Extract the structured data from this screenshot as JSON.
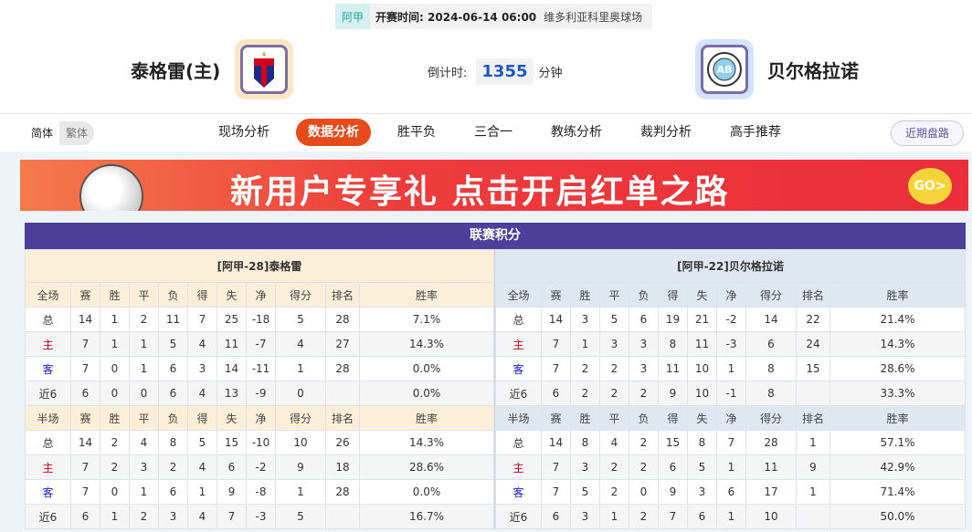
{
  "match": {
    "league": "阿甲",
    "time_label": "开赛时间:",
    "time": "2024-06-14 06:00",
    "venue": "维多利亚科里奥球场",
    "home": "泰格雷(主)",
    "away": "贝尔格拉诺",
    "countdown_label": "倒计时:",
    "countdown": "1355",
    "countdown_unit": "分钟"
  },
  "lang": {
    "simplified": "简体",
    "traditional": "繁体"
  },
  "tabs": [
    "现场分析",
    "数据分析",
    "胜平负",
    "三合一",
    "教练分析",
    "裁判分析",
    "高手推荐"
  ],
  "active_tab": "数据分析",
  "recent_button": "近期盘路",
  "banner": {
    "text": "新用户专享礼  点击开启红单之路",
    "go": "GO>"
  },
  "colors": {
    "accent": "#e84b1b",
    "header": "#4e3f9c",
    "home_label": "#d0021b",
    "away_label": "#1a1ad0"
  },
  "standings": {
    "title": "联赛积分",
    "columns": [
      "赛",
      "胜",
      "平",
      "负",
      "得",
      "失",
      "净",
      "得分",
      "排名",
      "胜率"
    ],
    "full_label": "全场",
    "half_label": "半场",
    "teams": [
      {
        "name": "[阿甲-28]泰格雷",
        "full": [
          [
            "总",
            "14",
            "1",
            "2",
            "11",
            "7",
            "25",
            "-18",
            "5",
            "28",
            "7.1%"
          ],
          [
            "主",
            "7",
            "1",
            "1",
            "5",
            "4",
            "11",
            "-7",
            "4",
            "27",
            "14.3%"
          ],
          [
            "客",
            "7",
            "0",
            "1",
            "6",
            "3",
            "14",
            "-11",
            "1",
            "28",
            "0.0%"
          ],
          [
            "近6",
            "6",
            "0",
            "0",
            "6",
            "4",
            "13",
            "-9",
            "0",
            "",
            "0.0%"
          ]
        ],
        "half": [
          [
            "总",
            "14",
            "2",
            "4",
            "8",
            "5",
            "15",
            "-10",
            "10",
            "26",
            "14.3%"
          ],
          [
            "主",
            "7",
            "2",
            "3",
            "2",
            "4",
            "6",
            "-2",
            "9",
            "18",
            "28.6%"
          ],
          [
            "客",
            "7",
            "0",
            "1",
            "6",
            "1",
            "9",
            "-8",
            "1",
            "28",
            "0.0%"
          ],
          [
            "近6",
            "6",
            "1",
            "2",
            "3",
            "4",
            "7",
            "-3",
            "5",
            "",
            "16.7%"
          ]
        ]
      },
      {
        "name": "[阿甲-22]贝尔格拉诺",
        "full": [
          [
            "总",
            "14",
            "3",
            "5",
            "6",
            "19",
            "21",
            "-2",
            "14",
            "22",
            "21.4%"
          ],
          [
            "主",
            "7",
            "1",
            "3",
            "3",
            "8",
            "11",
            "-3",
            "6",
            "24",
            "14.3%"
          ],
          [
            "客",
            "7",
            "2",
            "2",
            "3",
            "11",
            "10",
            "1",
            "8",
            "15",
            "28.6%"
          ],
          [
            "近6",
            "6",
            "2",
            "2",
            "2",
            "9",
            "10",
            "-1",
            "8",
            "",
            "33.3%"
          ]
        ],
        "half": [
          [
            "总",
            "14",
            "8",
            "4",
            "2",
            "15",
            "8",
            "7",
            "28",
            "1",
            "57.1%"
          ],
          [
            "主",
            "7",
            "3",
            "2",
            "2",
            "6",
            "5",
            "1",
            "11",
            "9",
            "42.9%"
          ],
          [
            "客",
            "7",
            "5",
            "2",
            "0",
            "9",
            "3",
            "6",
            "17",
            "1",
            "71.4%"
          ],
          [
            "近6",
            "6",
            "3",
            "1",
            "2",
            "7",
            "6",
            "1",
            "10",
            "",
            "50.0%"
          ]
        ]
      }
    ]
  }
}
